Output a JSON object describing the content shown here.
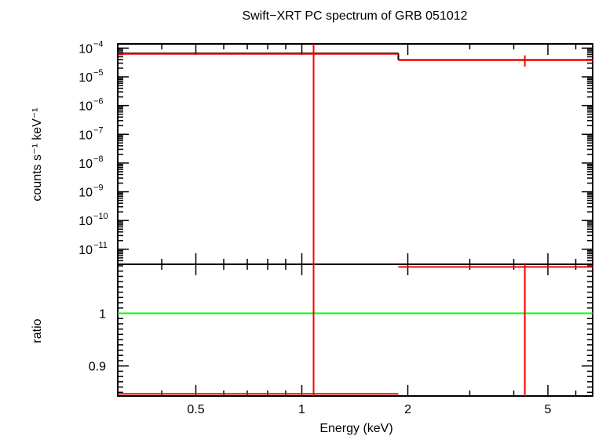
{
  "chart_data": {
    "type": "line",
    "title": "Swift−XRT PC spectrum of GRB 051012",
    "xlabel": "Energy (keV)",
    "x_scale": "log",
    "xlim": [
      0.3,
      6.7
    ],
    "x_ticks": [
      {
        "value": 0.5,
        "label": "0.5"
      },
      {
        "value": 1,
        "label": "1"
      },
      {
        "value": 2,
        "label": "2"
      },
      {
        "value": 5,
        "label": "5"
      }
    ],
    "panels": [
      {
        "name": "spectrum",
        "ylabel": "counts s⁻¹ keV⁻¹",
        "y_scale": "log",
        "ylim": [
          3e-12,
          0.00014
        ],
        "y_ticks": [
          {
            "value": 0.0001,
            "base": "10",
            "exp": "−4"
          },
          {
            "value": 1e-05,
            "base": "10",
            "exp": "−5"
          },
          {
            "value": 1e-06,
            "base": "10",
            "exp": "−6"
          },
          {
            "value": 1e-07,
            "base": "10",
            "exp": "−7"
          },
          {
            "value": 1e-08,
            "base": "10",
            "exp": "−8"
          },
          {
            "value": 1e-09,
            "base": "10",
            "exp": "−9"
          },
          {
            "value": 1e-10,
            "base": "10",
            "exp": "−10"
          },
          {
            "value": 1e-11,
            "base": "10",
            "exp": "−11"
          }
        ],
        "model": {
          "color": "#000000",
          "steps": [
            {
              "x0": 0.3,
              "x1": 1.88,
              "y": 6.6e-05
            },
            {
              "x0": 1.88,
              "x1": 6.7,
              "y": 3.9e-05
            }
          ]
        },
        "data": {
          "color": "#ff0000",
          "points": [
            {
              "x0": 0.3,
              "x1": 1.88,
              "x": 1.08,
              "y": 6.3e-05,
              "y_err_low": 3e-12,
              "y_err_high": 0.00014
            },
            {
              "x0": 1.88,
              "x1": 6.7,
              "x": 4.3,
              "y": 3.8e-05,
              "y_err_low": 2.3e-05,
              "y_err_high": 5.6e-05
            }
          ]
        }
      },
      {
        "name": "ratio",
        "ylabel": "ratio",
        "y_scale": "linear",
        "ylim": [
          0.843,
          1.093
        ],
        "y_ticks": [
          {
            "value": 0.9,
            "label": "0.9"
          },
          {
            "value": 1,
            "label": "1"
          }
        ],
        "reference": {
          "y": 1,
          "color": "#00ff00"
        },
        "data": {
          "color": "#ff0000",
          "points": [
            {
              "x0": 0.3,
              "x1": 1.88,
              "x": 1.08,
              "y": 0.847,
              "y_err_low": 0.843,
              "y_err_high": 1.093
            },
            {
              "x0": 1.88,
              "x1": 6.7,
              "x": 4.3,
              "y": 1.088,
              "y_err_low": 0.843,
              "y_err_high": 1.093
            }
          ]
        }
      }
    ],
    "grid": false,
    "legend": "none"
  }
}
